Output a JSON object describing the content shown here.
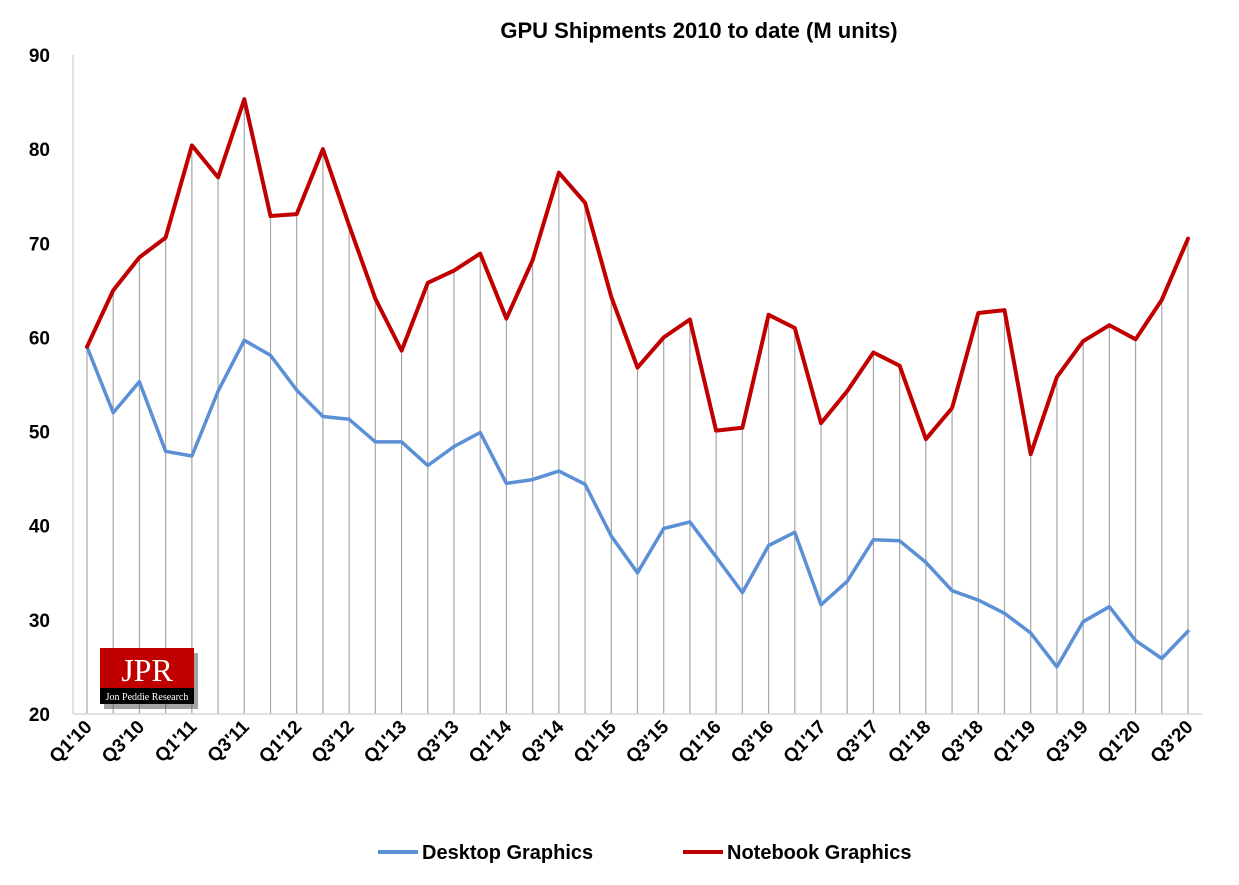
{
  "chart_data": {
    "type": "line",
    "title": "GPU Shipments 2010 to date (M units)",
    "xlabel": "",
    "ylabel": "",
    "ylim": [
      20,
      90
    ],
    "yticks": [
      20,
      30,
      40,
      50,
      60,
      70,
      80,
      90
    ],
    "grid": "vertical drop lines",
    "legend_position": "bottom",
    "categories": [
      "Q1'10",
      "Q2'10",
      "Q3'10",
      "Q4'10",
      "Q1'11",
      "Q2'11",
      "Q3'11",
      "Q4'11",
      "Q1'12",
      "Q2'12",
      "Q3'12",
      "Q4'12",
      "Q1'13",
      "Q2'13",
      "Q3'13",
      "Q4'13",
      "Q1'14",
      "Q2'14",
      "Q3'14",
      "Q4'14",
      "Q1'15",
      "Q2'15",
      "Q3'15",
      "Q4'15",
      "Q1'16",
      "Q2'16",
      "Q3'16",
      "Q4'16",
      "Q1'17",
      "Q2'17",
      "Q3'17",
      "Q4'17",
      "Q1'18",
      "Q2'18",
      "Q3'18",
      "Q4'18",
      "Q1'19",
      "Q2'19",
      "Q3'19",
      "Q4'19",
      "Q1'20",
      "Q2'20",
      "Q3'20"
    ],
    "tick_labels": [
      "Q1'10",
      "Q3'10",
      "Q1'11",
      "Q3'11",
      "Q1'12",
      "Q3'12",
      "Q1'13",
      "Q3'13",
      "Q1'14",
      "Q3'14",
      "Q1'15",
      "Q3'15",
      "Q1'16",
      "Q3'16",
      "Q1'17",
      "Q3'17",
      "Q1'18",
      "Q3'18",
      "Q1'19",
      "Q3'19",
      "Q1'20",
      "Q3'20"
    ],
    "series": [
      {
        "name": "Desktop Graphics",
        "color": "#5B8FD6",
        "values": [
          59.0,
          52.0,
          55.3,
          47.9,
          47.4,
          54.3,
          59.7,
          58.1,
          54.4,
          51.6,
          51.3,
          48.9,
          48.9,
          46.4,
          48.4,
          49.9,
          44.5,
          44.9,
          45.8,
          44.4,
          38.9,
          35.0,
          39.7,
          40.4,
          36.7,
          32.9,
          37.9,
          39.3,
          31.6,
          34.1,
          38.5,
          38.4,
          36.1,
          33.1,
          32.1,
          30.7,
          28.6,
          25.0,
          29.8,
          31.4,
          27.8,
          25.9,
          28.8
        ]
      },
      {
        "name": "Notebook Graphics",
        "color": "#C00000",
        "values": [
          59.0,
          65.0,
          68.5,
          70.6,
          80.4,
          77.0,
          85.3,
          72.9,
          73.1,
          80.0,
          71.9,
          64.1,
          58.6,
          65.8,
          67.1,
          68.9,
          62.0,
          68.2,
          77.5,
          74.3,
          64.3,
          56.8,
          60.0,
          61.9,
          50.1,
          50.4,
          62.4,
          61.0,
          50.9,
          54.3,
          58.4,
          57.0,
          49.2,
          52.5,
          62.6,
          62.9,
          47.6,
          55.8,
          59.6,
          61.3,
          59.8,
          64.0,
          70.5
        ]
      }
    ]
  },
  "logo": {
    "initials": "JPR",
    "company": "Jon Peddie Research",
    "bg_color": "#C00000"
  }
}
